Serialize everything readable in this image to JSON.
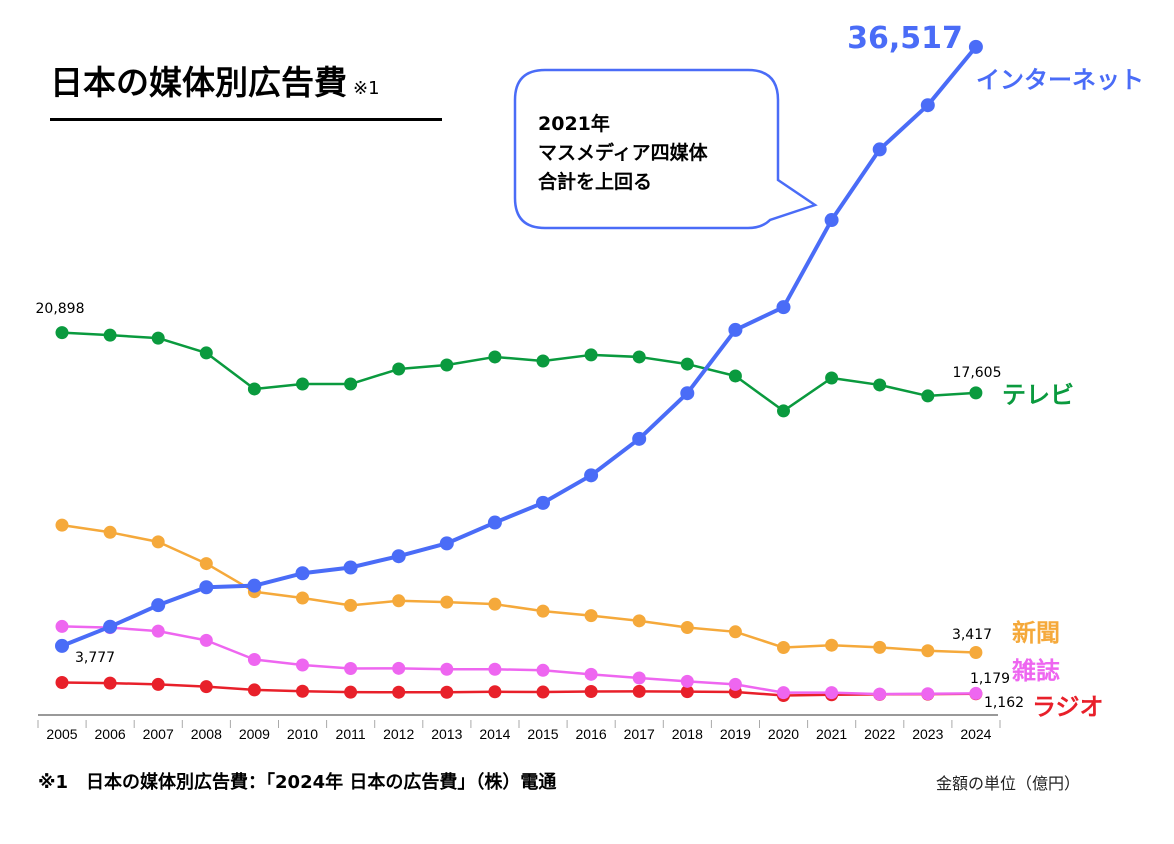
{
  "title": "日本の媒体別広告費",
  "title_note": "※1",
  "footnote": "※1　日本の媒体別広告費：「2024年 日本の広告費」（株）電通",
  "unit_label": "金額の単位（億円）",
  "callout": [
    "2021年",
    "マスメディア四媒体",
    "合計を上回る"
  ],
  "chart_data": {
    "type": "line",
    "title": "日本の媒体別広告費",
    "xlabel": "",
    "ylabel": "",
    "ylim": [
      0,
      39000
    ],
    "grid": false,
    "categories": [
      "2005",
      "2006",
      "2007",
      "2008",
      "2009",
      "2010",
      "2011",
      "2012",
      "2013",
      "2014",
      "2015",
      "2016",
      "2017",
      "2018",
      "2019",
      "2020",
      "2021",
      "2022",
      "2023",
      "2024"
    ],
    "series": [
      {
        "name": "インターネット",
        "color": "#4a6cf7",
        "start_label": "3,777",
        "end_label": "36,517",
        "values": [
          3777,
          4826,
          6003,
          6983,
          7069,
          7747,
          8062,
          8680,
          9381,
          10519,
          11594,
          13100,
          15094,
          17589,
          21048,
          22290,
          27052,
          30912,
          33330,
          36517
        ]
      },
      {
        "name": "テレビ",
        "color": "#0a9a3e",
        "start_label": "20,898",
        "end_label": "17,605",
        "values": [
          20898,
          20760,
          20600,
          19790,
          17820,
          18090,
          18090,
          18910,
          19130,
          19570,
          19350,
          19680,
          19570,
          19180,
          18530,
          16620,
          18420,
          18040,
          17440,
          17605
        ]
      },
      {
        "name": "新聞",
        "color": "#f5a93b",
        "end_label": "3,417",
        "values": [
          10377,
          9986,
          9462,
          8276,
          6739,
          6396,
          5990,
          6242,
          6170,
          6057,
          5679,
          5431,
          5147,
          4784,
          4547,
          3688,
          3815,
          3697,
          3512,
          3417
        ]
      },
      {
        "name": "雑誌",
        "color": "#ee66f0",
        "end_label": "1,179",
        "values": [
          4842,
          4777,
          4585,
          4078,
          3034,
          2733,
          2542,
          2551,
          2499,
          2500,
          2443,
          2223,
          2023,
          1841,
          1675,
          1223,
          1224,
          1140,
          1163,
          1179
        ]
      },
      {
        "name": "ラジオ",
        "color": "#e8202a",
        "end_label": "1,162",
        "values": [
          1778,
          1744,
          1671,
          1549,
          1370,
          1299,
          1247,
          1246,
          1243,
          1272,
          1254,
          1285,
          1290,
          1278,
          1260,
          1066,
          1106,
          1129,
          1139,
          1162
        ]
      }
    ],
    "annotation": "2021年 マスメディア四媒体 合計を上回る"
  }
}
